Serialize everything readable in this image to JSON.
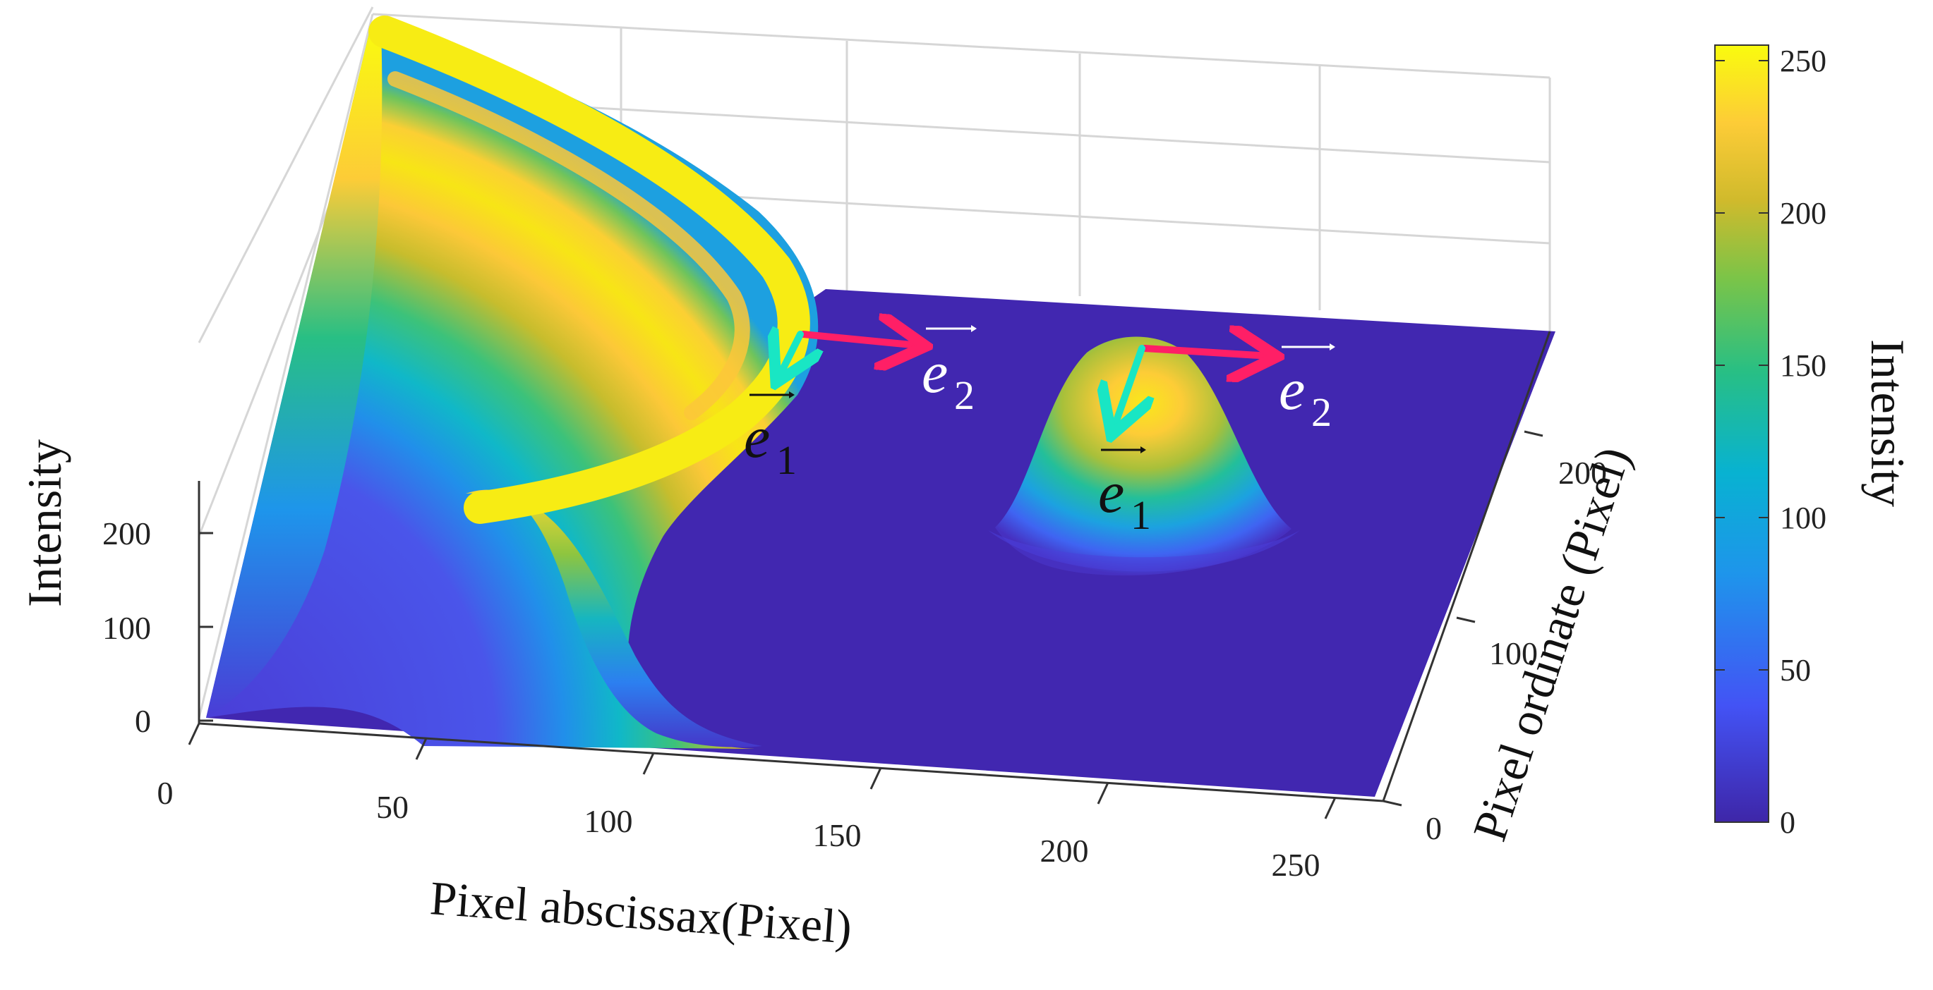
{
  "chart_data": {
    "type": "surface",
    "colormap": "parula",
    "x_axis": {
      "label": "Pixel abscissax(Pixel)",
      "ticks": [
        "0",
        "50",
        "100",
        "150",
        "200",
        "250"
      ],
      "range": [
        0,
        256
      ]
    },
    "y_axis": {
      "label": "Pixel ordinate (Pixel)",
      "ticks": [
        "0",
        "100",
        "200"
      ],
      "range": [
        0,
        256
      ]
    },
    "z_axis": {
      "label": "Intensity",
      "ticks": [
        "0",
        "100",
        "200"
      ],
      "range": [
        0,
        255
      ]
    },
    "colorbar": {
      "label": "Intensity",
      "ticks": [
        "0",
        "50",
        "100",
        "150",
        "200",
        "250"
      ],
      "range": [
        0,
        255
      ]
    },
    "features": [
      {
        "kind": "ring ridge",
        "center": [
          0,
          256
        ],
        "peak_intensity": 255
      },
      {
        "kind": "gaussian peak",
        "center": [
          200,
          128
        ],
        "peak_intensity": 235
      }
    ],
    "annotations": [
      {
        "vector": "e",
        "subscript": "1",
        "color": "#111111"
      },
      {
        "vector": "e",
        "subscript": "2",
        "color": "#ffffff"
      },
      {
        "vector": "e",
        "subscript": "1",
        "color": "#111111"
      },
      {
        "vector": "e",
        "subscript": "2",
        "color": "#ffffff"
      }
    ],
    "arrow_colors": {
      "e1": "#19e6c4",
      "e2": "#ff1f66"
    },
    "grid": true
  }
}
